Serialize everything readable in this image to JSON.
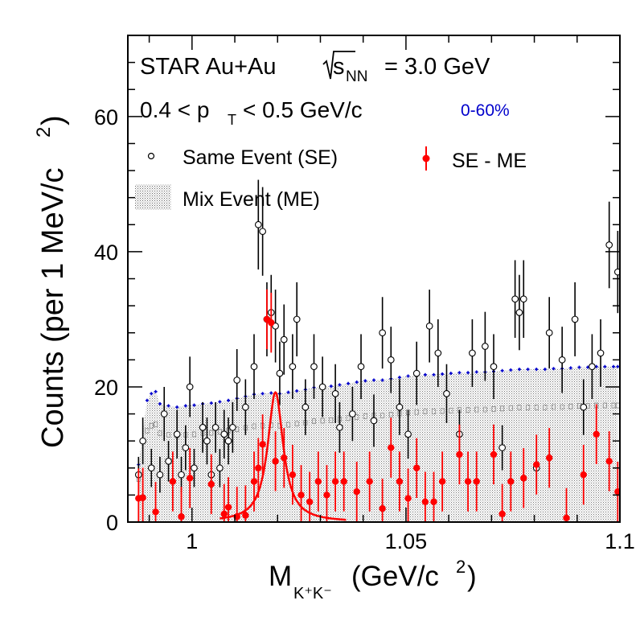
{
  "chart_data": {
    "type": "scatter",
    "title_lines": {
      "experiment": "STAR Au+Au",
      "energy_lhs": "s",
      "energy_sub": "NN",
      "energy_rhs": "= 3.0 GeV",
      "pt_lhs": "0.4 < p",
      "pt_sub": "T",
      "pt_rhs": "< 0.5 GeV/c",
      "centrality": "0-60%"
    },
    "xlabel": {
      "main": "M",
      "sub": "K⁺K⁻",
      "unit": "(GeV/c",
      "sup": "2",
      "close": ")"
    },
    "ylabel": {
      "main": "Counts (per 1 MeV/c",
      "sup": "2",
      "close": ")"
    },
    "xlim": [
      0.985,
      1.1
    ],
    "ylim": [
      0,
      72
    ],
    "x_ticks": [
      {
        "v": 1.0,
        "label": "1"
      },
      {
        "v": 1.05,
        "label": "1.05"
      },
      {
        "v": 1.1,
        "label": "1.1"
      }
    ],
    "y_ticks": [
      {
        "v": 0,
        "label": "0"
      },
      {
        "v": 20,
        "label": "20"
      },
      {
        "v": 40,
        "label": "40"
      },
      {
        "v": 60,
        "label": "60"
      }
    ],
    "legend": {
      "same_event": "Same Event (SE)",
      "mixed_event": "Mix Event (ME)",
      "subtracted": "SE - ME"
    },
    "colors": {
      "same_event": "#000000",
      "mixed_event_line": "#0000cc",
      "subtracted": "#ff0000",
      "fit": "#ff0000"
    },
    "fit": {
      "mean": 1.0195,
      "sigma": 0.0022,
      "amplitude": 19.2,
      "x_range": [
        1.0065,
        1.036
      ]
    },
    "series": [
      {
        "name": "Same Event (SE)",
        "marker": "open-circle",
        "x": [
          0.9875,
          0.9885,
          0.9905,
          0.9925,
          0.9935,
          0.9945,
          0.9965,
          0.9975,
          0.9985,
          0.9995,
          1.0005,
          1.0025,
          1.0035,
          1.0045,
          1.0055,
          1.0065,
          1.0075,
          1.0085,
          1.0095,
          1.0105,
          1.0125,
          1.0145,
          1.0155,
          1.0165,
          1.0175,
          1.0185,
          1.0195,
          1.0205,
          1.0215,
          1.0235,
          1.0245,
          1.0265,
          1.0285,
          1.0305,
          1.0335,
          1.0345,
          1.0375,
          1.0395,
          1.0425,
          1.0445,
          1.0465,
          1.0485,
          1.0505,
          1.0525,
          1.0555,
          1.0575,
          1.0595,
          1.0625,
          1.0655,
          1.0685,
          1.0705,
          1.0725,
          1.0755,
          1.0765,
          1.0775,
          1.0805,
          1.0835,
          1.0865,
          1.0895,
          1.0915,
          1.0935,
          1.0955,
          1.0975,
          1.0995
        ],
        "y": [
          7,
          12,
          8,
          7,
          16,
          9,
          13,
          7,
          11,
          20,
          8,
          14,
          12,
          7,
          14,
          8,
          13,
          12,
          14,
          21,
          17,
          23,
          44,
          43,
          30,
          31,
          29,
          22,
          27,
          23,
          30,
          17,
          23,
          20,
          19,
          14,
          16,
          23,
          15,
          28,
          24,
          17,
          13,
          22,
          29,
          25,
          19,
          13,
          25,
          26,
          23,
          11,
          33,
          31,
          33,
          8,
          28,
          24,
          30,
          17,
          23,
          25,
          41,
          37
        ]
      },
      {
        "name": "SE - ME",
        "marker": "filled-circle",
        "x": [
          0.9875,
          0.9885,
          0.9915,
          0.9955,
          0.9975,
          0.9995,
          1.0045,
          1.0075,
          1.0085,
          1.0105,
          1.0125,
          1.0145,
          1.0155,
          1.0165,
          1.0175,
          1.0185,
          1.0195,
          1.0215,
          1.0235,
          1.0255,
          1.0275,
          1.0295,
          1.0315,
          1.0335,
          1.0355,
          1.0385,
          1.0415,
          1.0445,
          1.0465,
          1.0485,
          1.0505,
          1.0525,
          1.0545,
          1.0565,
          1.0585,
          1.0625,
          1.0645,
          1.0665,
          1.0705,
          1.0725,
          1.0745,
          1.0775,
          1.0805,
          1.0835,
          1.0875,
          1.0915,
          1.0945,
          1.0975,
          1.0995
        ],
        "y": [
          3.5,
          3.6,
          1.5,
          6.0,
          0.8,
          6.5,
          5.6,
          1.2,
          2.2,
          0.8,
          1.0,
          6.0,
          8.0,
          11.5,
          30.0,
          29.5,
          9.0,
          9.5,
          7.0,
          4.0,
          3.0,
          6.0,
          4.0,
          6.0,
          6.0,
          4.5,
          6.0,
          2.0,
          11.0,
          6.0,
          3.5,
          8.0,
          3.0,
          3.0,
          6.0,
          10.0,
          6.0,
          6.0,
          10.0,
          1.2,
          6.0,
          6.5,
          8.5,
          9.5,
          0.6,
          7.0,
          13.0,
          9.0,
          4.5
        ]
      }
    ],
    "mixed_event_line": {
      "name": "Mix Event (ME)",
      "x": [
        0.9875,
        0.9895,
        0.9905,
        0.9915,
        0.9925,
        0.9945,
        0.9965,
        0.9985,
        1.0005,
        1.0025,
        1.0045,
        1.0065,
        1.0085,
        1.0105,
        1.0125,
        1.0145,
        1.0165,
        1.0185,
        1.0205,
        1.0225,
        1.0245,
        1.0265,
        1.0285,
        1.0305,
        1.0325,
        1.0345,
        1.0365,
        1.0385,
        1.0405,
        1.0425,
        1.0445,
        1.0465,
        1.0485,
        1.0505,
        1.0525,
        1.0545,
        1.0565,
        1.0585,
        1.0605,
        1.0625,
        1.0645,
        1.0665,
        1.0685,
        1.0705,
        1.0725,
        1.0745,
        1.0765,
        1.0785,
        1.0805,
        1.0825,
        1.0845,
        1.0865,
        1.0885,
        1.0905,
        1.0925,
        1.0945,
        1.0965,
        1.0985,
        1.0995
      ],
      "y": [
        8.5,
        18.0,
        19.0,
        19.3,
        17.5,
        17.2,
        17.0,
        17.2,
        17.3,
        17.5,
        17.6,
        17.8,
        18.0,
        18.3,
        18.6,
        18.9,
        19.0,
        19.1,
        19.0,
        19.2,
        19.4,
        19.6,
        19.9,
        20.0,
        20.1,
        20.3,
        20.5,
        20.7,
        20.9,
        21.0,
        21.0,
        21.2,
        21.4,
        21.6,
        21.7,
        21.8,
        21.8,
        21.9,
        22.0,
        22.1,
        22.1,
        22.2,
        22.2,
        22.3,
        22.4,
        22.5,
        22.6,
        22.6,
        22.6,
        22.6,
        22.7,
        22.7,
        22.8,
        22.9,
        22.9,
        23.0,
        23.0,
        23.0,
        23.0
      ]
    }
  }
}
